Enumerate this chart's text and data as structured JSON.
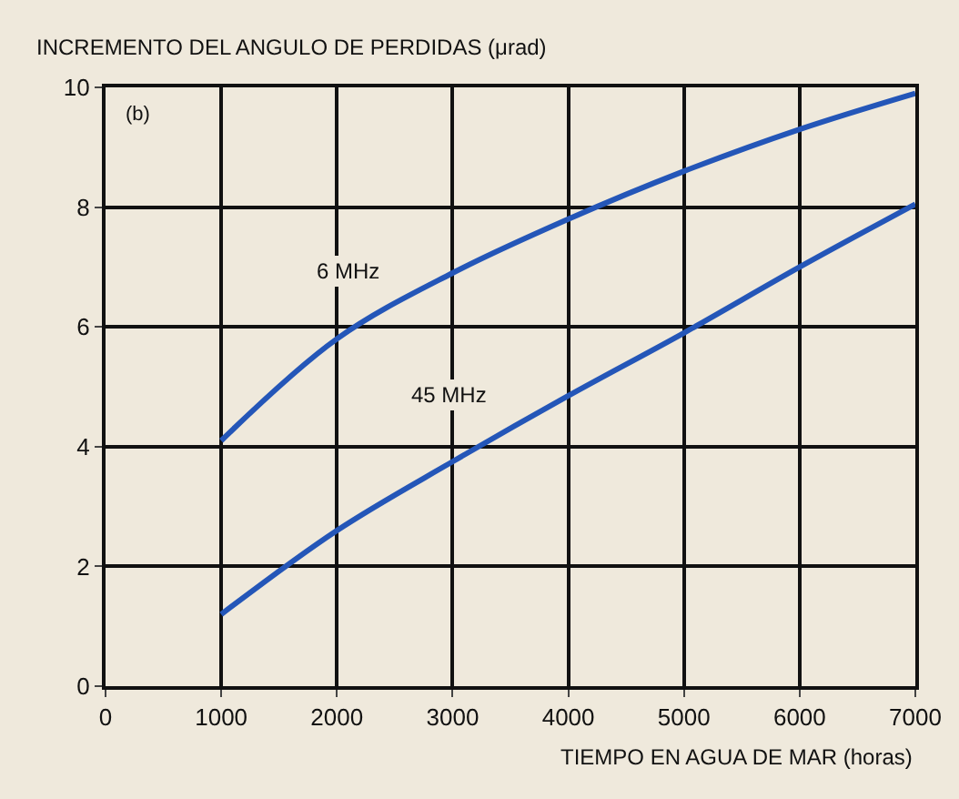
{
  "chart_data": {
    "type": "line",
    "ylabel": "INCREMENTO DEL ANGULO DE PERDIDAS (μrad)",
    "xlabel": "TIEMPO EN AGUA DE MAR (horas)",
    "x": [
      1000,
      2000,
      3000,
      4000,
      5000,
      6000,
      7000
    ],
    "series": [
      {
        "name": "6 MHz",
        "color": "#2456b8",
        "values": [
          4.1,
          5.8,
          6.9,
          7.8,
          8.6,
          9.3,
          9.9
        ]
      },
      {
        "name": "45 MHz",
        "color": "#2456b8",
        "values": [
          1.2,
          2.6,
          3.75,
          4.85,
          5.9,
          7.0,
          8.05
        ]
      }
    ],
    "annotations": [
      "(b)"
    ],
    "xlim": [
      0,
      7000
    ],
    "xticks": [
      0,
      1000,
      2000,
      3000,
      4000,
      5000,
      6000,
      7000
    ],
    "ylim": [
      0,
      10
    ],
    "yticks": [
      0,
      2,
      4,
      6,
      8,
      10
    ],
    "grid": true,
    "legend": false,
    "marker": "none",
    "line_style": "solid"
  }
}
